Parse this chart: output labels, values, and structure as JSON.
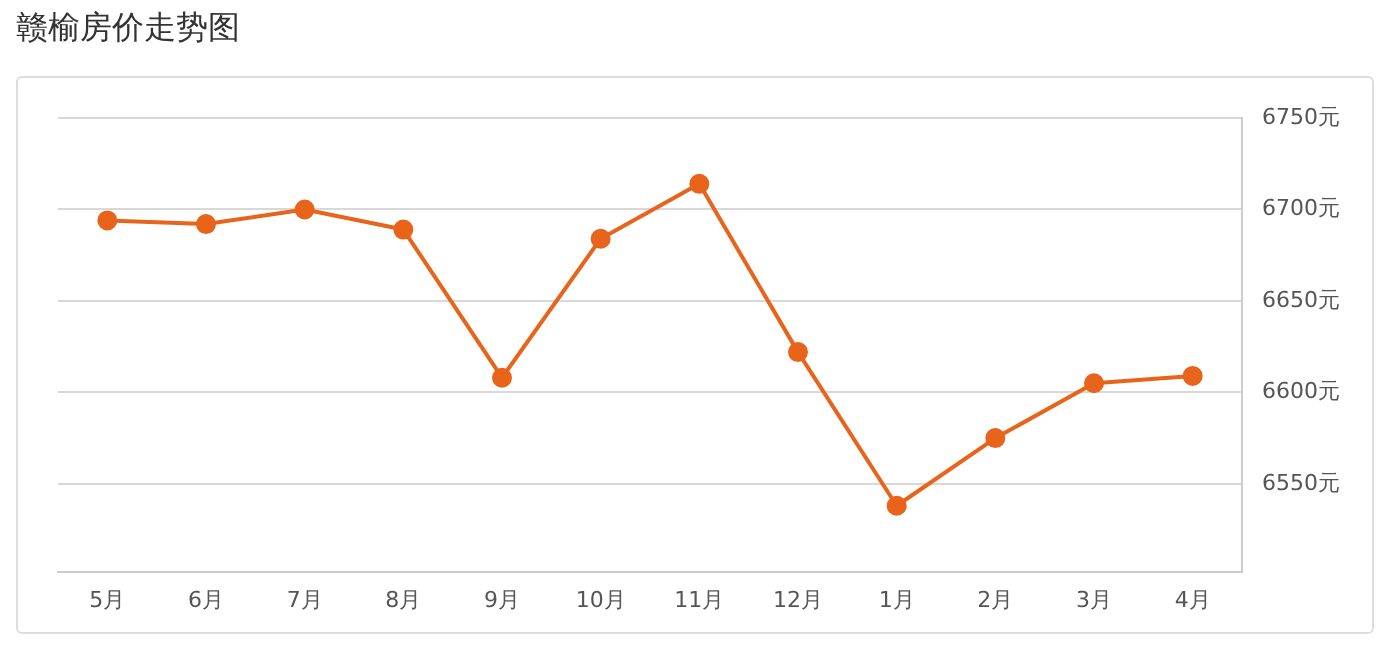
{
  "chart_data": {
    "type": "line",
    "title": "赣榆房价走势图",
    "categories": [
      "5月",
      "6月",
      "7月",
      "8月",
      "9月",
      "10月",
      "11月",
      "12月",
      "1月",
      "2月",
      "3月",
      "4月"
    ],
    "series": [
      {
        "color": "#e8641b",
        "values": [
          6694,
          6692,
          6700,
          6689,
          6608,
          6684,
          6714,
          6622,
          6538,
          6575,
          6605,
          6609
        ]
      }
    ],
    "ylim": [
      6502,
      6750
    ],
    "yticks": [
      {
        "value": 6550,
        "label": "6550元"
      },
      {
        "value": 6600,
        "label": "6600元"
      },
      {
        "value": 6650,
        "label": "6650元"
      },
      {
        "value": 6700,
        "label": "6700元"
      },
      {
        "value": 6750,
        "label": "6750元"
      }
    ],
    "grid": "y",
    "legend": false,
    "marker": "circle",
    "line_style": "solid"
  }
}
